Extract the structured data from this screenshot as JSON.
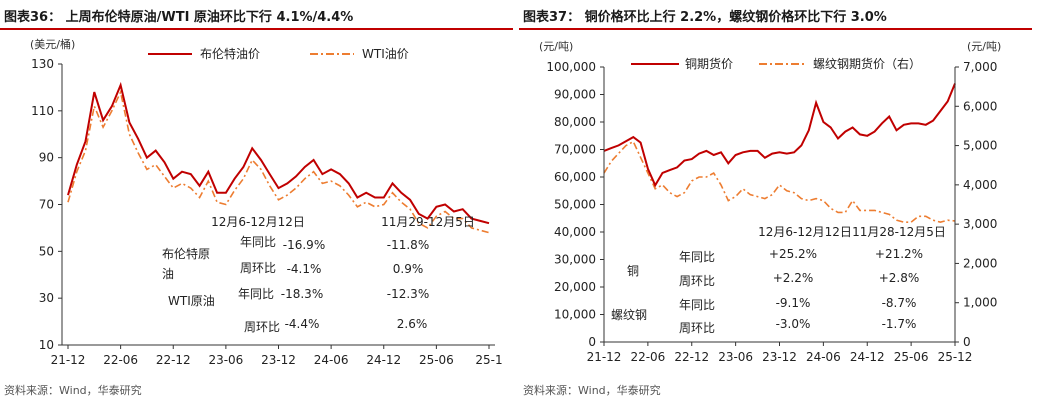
{
  "colors": {
    "brent": "#c00000",
    "wti": "#ed7d31",
    "copper": "#c00000",
    "rebar": "#ed7d31",
    "rule": "#c00000"
  },
  "left": {
    "title": "图表36： 上周布伦特原油/WTI 原油环比下行 4.1%/4.4%",
    "source": "资料来源：Wind，华泰研究",
    "chart_data": {
      "type": "line",
      "title": "图表36： 上周布伦特原油/WTI 原油环比下行 4.1%/4.4%",
      "ylabel": "(美元/桶)",
      "ylim": [
        10,
        130
      ],
      "yticks": [
        "130",
        "110",
        "90",
        "70",
        "50",
        "30",
        "10"
      ],
      "xticks": [
        "21-12",
        "22-06",
        "22-12",
        "23-06",
        "23-12",
        "24-06",
        "24-12",
        "25-06",
        "25-1"
      ],
      "legend": [
        "布伦特油价",
        "WTI油价"
      ],
      "legend_position": "top",
      "series": [
        {
          "name": "布伦特油价",
          "x": [
            "21-12",
            "22-01",
            "22-02",
            "22-03",
            "22-04",
            "22-05",
            "22-06",
            "22-07",
            "22-08",
            "22-09",
            "22-10",
            "22-11",
            "22-12",
            "23-01",
            "23-02",
            "23-03",
            "23-04",
            "23-05",
            "23-06",
            "23-07",
            "23-08",
            "23-09",
            "23-10",
            "23-11",
            "23-12",
            "24-01",
            "24-02",
            "24-03",
            "24-04",
            "24-05",
            "24-06",
            "24-07",
            "24-08",
            "24-09",
            "24-10",
            "24-11",
            "24-12",
            "25-01",
            "25-02",
            "25-03",
            "25-04",
            "25-05",
            "25-06",
            "25-07",
            "25-08",
            "25-09",
            "25-10",
            "25-11",
            "25-12"
          ],
          "values": [
            74,
            87,
            97,
            118,
            106,
            112,
            121,
            105,
            98,
            90,
            93,
            88,
            81,
            84,
            83,
            78,
            84,
            75,
            75,
            81,
            86,
            94,
            89,
            83,
            77,
            79,
            82,
            86,
            89,
            83,
            85,
            83,
            79,
            73,
            75,
            73,
            73,
            79,
            75,
            72,
            66,
            64,
            69,
            70,
            67,
            68,
            64,
            63,
            62
          ]
        },
        {
          "name": "WTI油价",
          "x": [
            "21-12",
            "22-01",
            "22-02",
            "22-03",
            "22-04",
            "22-05",
            "22-06",
            "22-07",
            "22-08",
            "22-09",
            "22-10",
            "22-11",
            "22-12",
            "23-01",
            "23-02",
            "23-03",
            "23-04",
            "23-05",
            "23-06",
            "23-07",
            "23-08",
            "23-09",
            "23-10",
            "23-11",
            "23-12",
            "24-01",
            "24-02",
            "24-03",
            "24-04",
            "24-05",
            "24-06",
            "24-07",
            "24-08",
            "24-09",
            "24-10",
            "24-11",
            "24-12",
            "25-01",
            "25-02",
            "25-03",
            "25-04",
            "25-05",
            "25-06",
            "25-07",
            "25-08",
            "25-09",
            "25-10",
            "25-11",
            "25-12"
          ],
          "values": [
            71,
            84,
            93,
            112,
            103,
            110,
            118,
            100,
            92,
            85,
            87,
            82,
            77,
            79,
            77,
            73,
            80,
            71,
            70,
            76,
            81,
            89,
            85,
            78,
            72,
            74,
            77,
            81,
            84,
            79,
            80,
            78,
            74,
            69,
            71,
            69,
            70,
            75,
            71,
            68,
            62,
            60,
            65,
            67,
            64,
            64,
            60,
            59,
            58
          ]
        }
      ]
    },
    "table": {
      "headers": [
        "12月6-12月12日",
        "11月29-12月5日"
      ],
      "groups": [
        {
          "name_line1": "布伦特原",
          "name_line2": "油",
          "rows": [
            {
              "label": "年同比",
              "a": "-16.9%",
              "b": "-11.8%"
            },
            {
              "label": "周环比",
              "a": "-4.1%",
              "b": "0.9%"
            }
          ]
        },
        {
          "name_line1": "WTI原油",
          "name_line2": "",
          "rows": [
            {
              "label": "年同比",
              "a": "-18.3%",
              "b": "-12.3%"
            },
            {
              "label": "周环比",
              "a": "-4.4%",
              "b": "2.6%"
            }
          ]
        }
      ]
    }
  },
  "right": {
    "title": "图表37： 铜价格环比上行 2.2%，螺纹钢价格环比下行 3.0%",
    "source": "资料来源：Wind，华泰研究",
    "chart_data": {
      "type": "line",
      "title": "图表37： 铜价格环比上行 2.2%，螺纹钢价格环比下行 3.0%",
      "ylabel_left": "(元/吨)",
      "ylabel_right": "(元/吨)",
      "ylim_left": [
        0,
        100000
      ],
      "ylim_right": [
        0,
        7000
      ],
      "yticks_left": [
        "100,000",
        "90,000",
        "80,000",
        "70,000",
        "60,000",
        "50,000",
        "40,000",
        "30,000",
        "20,000",
        "10,000",
        "0"
      ],
      "yticks_right": [
        "7,000",
        "6,000",
        "5,000",
        "4,000",
        "3,000",
        "2,000",
        "1,000",
        "0"
      ],
      "xticks": [
        "21-12",
        "22-06",
        "22-12",
        "23-06",
        "23-12",
        "24-06",
        "24-12",
        "25-06",
        "25-12"
      ],
      "legend": [
        "铜期货价",
        "螺纹钢期货价（右）"
      ],
      "legend_position": "top",
      "series": [
        {
          "name": "铜期货价",
          "axis": "left",
          "x": [
            "21-12",
            "22-01",
            "22-02",
            "22-03",
            "22-04",
            "22-05",
            "22-06",
            "22-07",
            "22-08",
            "22-09",
            "22-10",
            "22-11",
            "22-12",
            "23-01",
            "23-02",
            "23-03",
            "23-04",
            "23-05",
            "23-06",
            "23-07",
            "23-08",
            "23-09",
            "23-10",
            "23-11",
            "23-12",
            "24-01",
            "24-02",
            "24-03",
            "24-04",
            "24-05",
            "24-06",
            "24-07",
            "24-08",
            "24-09",
            "24-10",
            "24-11",
            "24-12",
            "25-01",
            "25-02",
            "25-03",
            "25-04",
            "25-05",
            "25-06",
            "25-07",
            "25-08",
            "25-09",
            "25-10",
            "25-11",
            "25-12"
          ],
          "values": [
            69500,
            70500,
            71500,
            73000,
            74500,
            72500,
            63000,
            57000,
            61500,
            62500,
            63500,
            66000,
            66500,
            68500,
            69500,
            68000,
            69000,
            65000,
            68000,
            69000,
            69500,
            69500,
            67000,
            68500,
            69000,
            68500,
            69000,
            71500,
            77000,
            87000,
            80000,
            78000,
            74000,
            76500,
            78000,
            75500,
            75000,
            76500,
            79500,
            82000,
            77000,
            79000,
            79500,
            79500,
            79000,
            80500,
            84000,
            87500,
            94000
          ]
        },
        {
          "name": "螺纹钢期货价（右）",
          "axis": "right",
          "x": [
            "21-12",
            "22-01",
            "22-02",
            "22-03",
            "22-04",
            "22-05",
            "22-06",
            "22-07",
            "22-08",
            "22-09",
            "22-10",
            "22-11",
            "22-12",
            "23-01",
            "23-02",
            "23-03",
            "23-04",
            "23-05",
            "23-06",
            "23-07",
            "23-08",
            "23-09",
            "23-10",
            "23-11",
            "23-12",
            "24-01",
            "24-02",
            "24-03",
            "24-04",
            "24-05",
            "24-06",
            "24-07",
            "24-08",
            "24-09",
            "24-10",
            "24-11",
            "24-12",
            "25-01",
            "25-02",
            "25-03",
            "25-04",
            "25-05",
            "25-06",
            "25-07",
            "25-08",
            "25-09",
            "25-10",
            "25-11",
            "25-12"
          ],
          "values": [
            4300,
            4600,
            4800,
            5000,
            5100,
            4700,
            4300,
            3900,
            4000,
            3800,
            3700,
            3800,
            4100,
            4200,
            4200,
            4300,
            4000,
            3600,
            3700,
            3900,
            3750,
            3700,
            3650,
            3750,
            4000,
            3850,
            3800,
            3650,
            3600,
            3650,
            3600,
            3400,
            3300,
            3300,
            3600,
            3350,
            3350,
            3350,
            3300,
            3250,
            3100,
            3050,
            3050,
            3200,
            3200,
            3100,
            3050,
            3100,
            3080
          ]
        }
      ]
    },
    "table": {
      "headers": [
        "12月6-12月12日",
        "11月28-12月5日"
      ],
      "groups": [
        {
          "name": "铜",
          "rows": [
            {
              "label": "年同比",
              "a": "+25.2%",
              "b": "+21.2%"
            },
            {
              "label": "周环比",
              "a": "+2.2%",
              "b": "+2.8%"
            }
          ]
        },
        {
          "name": "螺纹钢",
          "rows": [
            {
              "label": "年同比",
              "a": "-9.1%",
              "b": "-8.7%"
            },
            {
              "label": "周环比",
              "a": "-3.0%",
              "b": "-1.7%"
            }
          ]
        }
      ]
    }
  }
}
